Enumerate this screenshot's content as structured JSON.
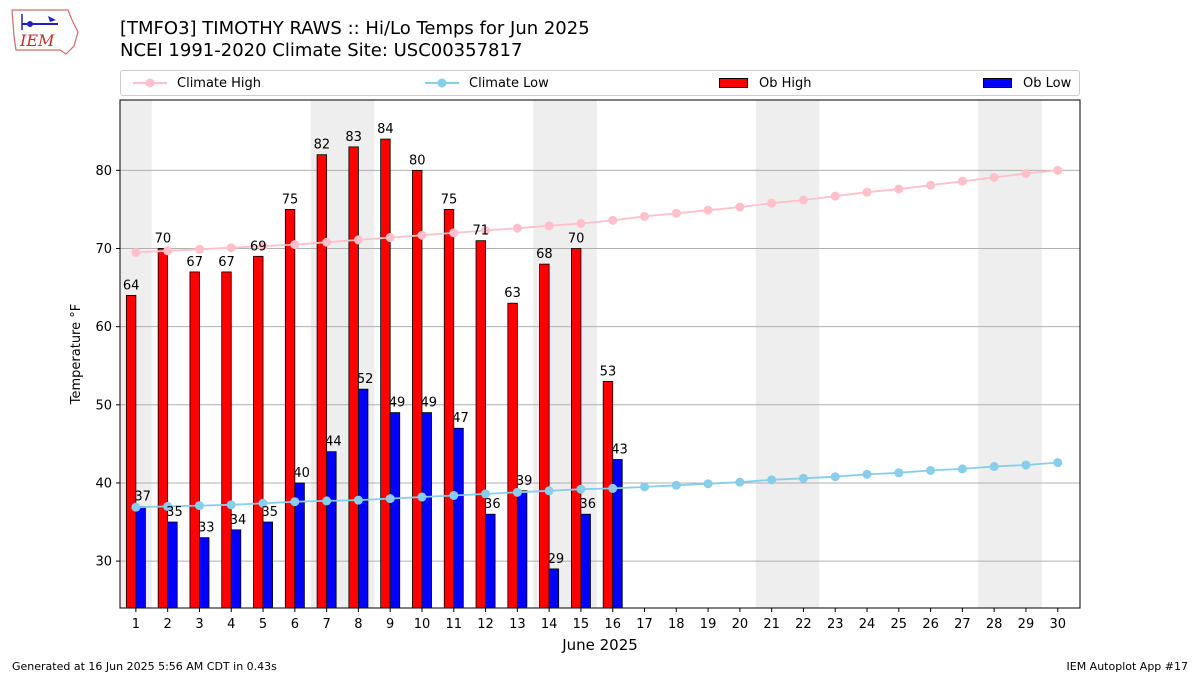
{
  "header": {
    "title": "[TMFO3] TIMOTHY RAWS :: Hi/Lo Temps for Jun 2025",
    "subtitle": "NCEI 1991-2020 Climate Site: USC00357817",
    "logo_text": "IEM"
  },
  "legend": {
    "climate_high": "Climate High",
    "climate_low": "Climate Low",
    "ob_high": "Ob High",
    "ob_low": "Ob Low"
  },
  "footer": {
    "generated": "Generated at 16 Jun 2025 5:56 AM CDT in 0.43s",
    "app": "IEM Autoplot App #17"
  },
  "colors": {
    "ob_high": "#ff0000",
    "ob_low": "#0000ff",
    "climate_high": "#ffc0cb",
    "climate_low": "#87ceeb",
    "weekend_shade": "#eeeeee",
    "grid": "#b0b0b0"
  },
  "chart_data": {
    "type": "bar",
    "title": "[TMFO3] TIMOTHY RAWS :: Hi/Lo Temps for Jun 2025",
    "xlabel": "June 2025",
    "ylabel": "Temperature °F",
    "ylim": [
      24,
      89
    ],
    "yticks": [
      30,
      40,
      50,
      60,
      70,
      80
    ],
    "grid": "horizontal",
    "legend_position": "top",
    "categories": [
      1,
      2,
      3,
      4,
      5,
      6,
      7,
      8,
      9,
      10,
      11,
      12,
      13,
      14,
      15,
      16,
      17,
      18,
      19,
      20,
      21,
      22,
      23,
      24,
      25,
      26,
      27,
      28,
      29,
      30
    ],
    "shaded_days": [
      1,
      7,
      8,
      14,
      15,
      21,
      22,
      28,
      29
    ],
    "series": [
      {
        "name": "Ob High",
        "kind": "bar",
        "values": [
          64,
          70,
          67,
          67,
          69,
          75,
          82,
          83,
          84,
          80,
          75,
          71,
          63,
          68,
          70,
          53,
          null,
          null,
          null,
          null,
          null,
          null,
          null,
          null,
          null,
          null,
          null,
          null,
          null,
          null
        ]
      },
      {
        "name": "Ob Low",
        "kind": "bar",
        "values": [
          37,
          35,
          33,
          34,
          35,
          40,
          44,
          52,
          49,
          49,
          47,
          36,
          39,
          29,
          36,
          43,
          null,
          null,
          null,
          null,
          null,
          null,
          null,
          null,
          null,
          null,
          null,
          null,
          null,
          null
        ]
      },
      {
        "name": "Climate High",
        "kind": "line",
        "values": [
          69.5,
          69.7,
          69.9,
          70.1,
          70.3,
          70.5,
          70.8,
          71.1,
          71.4,
          71.7,
          72.0,
          72.3,
          72.6,
          72.9,
          73.2,
          73.6,
          74.1,
          74.5,
          74.9,
          75.3,
          75.8,
          76.2,
          76.7,
          77.2,
          77.6,
          78.1,
          78.6,
          79.1,
          79.6,
          80.0
        ]
      },
      {
        "name": "Climate Low",
        "kind": "line",
        "values": [
          36.9,
          37.0,
          37.1,
          37.2,
          37.4,
          37.6,
          37.7,
          37.8,
          38.0,
          38.2,
          38.4,
          38.6,
          38.8,
          39.0,
          39.2,
          39.3,
          39.5,
          39.7,
          39.9,
          40.1,
          40.4,
          40.6,
          40.8,
          41.1,
          41.3,
          41.6,
          41.8,
          42.1,
          42.3,
          42.6
        ]
      }
    ]
  }
}
